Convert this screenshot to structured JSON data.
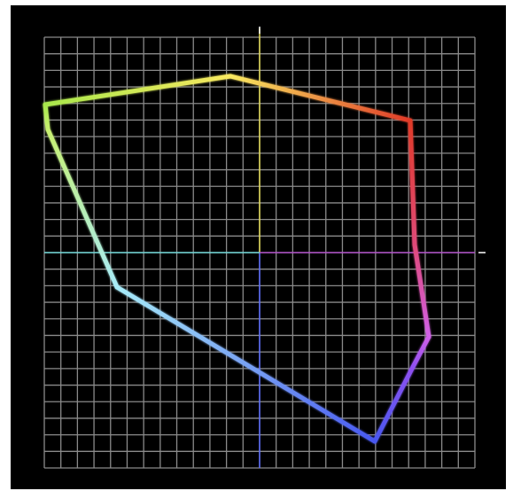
{
  "scope": {
    "name": "vectorscope",
    "grid_divisions": 26,
    "colors": {
      "background": "#000000",
      "grid": "#8a8a8a",
      "crosshair_center": "#ffffff"
    },
    "axes": [
      {
        "id": "yellow",
        "color": "#e8e05a"
      },
      {
        "id": "blue",
        "color": "#5a6cff"
      },
      {
        "id": "cyan",
        "color": "#6fd6d6"
      },
      {
        "id": "magenta",
        "color": "#b04fc8"
      }
    ],
    "trace": {
      "points": [
        {
          "hue": "green-yellow",
          "color": "#a8e84c"
        },
        {
          "hue": "yellow",
          "color": "#f8e860"
        },
        {
          "hue": "red",
          "color": "#e03a28"
        },
        {
          "hue": "red-magenta",
          "color": "#e04a78"
        },
        {
          "hue": "magenta",
          "color": "#d060e8"
        },
        {
          "hue": "blue-violet",
          "color": "#9050f0"
        },
        {
          "hue": "blue",
          "color": "#4858f0"
        },
        {
          "hue": "cyan",
          "color": "#a8ecf8"
        },
        {
          "hue": "green",
          "color": "#c8f070"
        },
        {
          "hue": "green-yellow",
          "color": "#a8e84c"
        }
      ]
    }
  }
}
